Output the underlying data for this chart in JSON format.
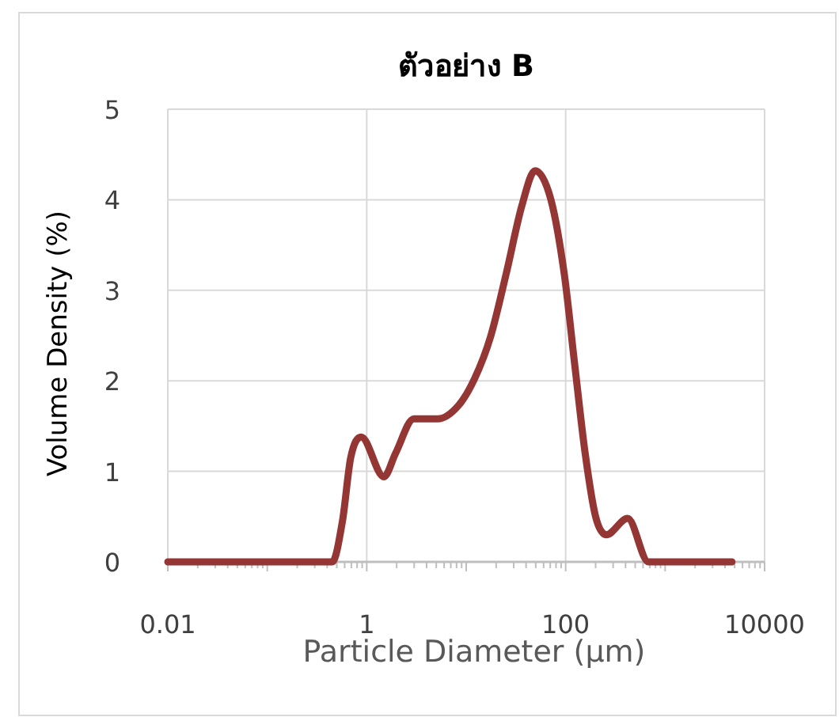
{
  "chart_data": {
    "type": "line",
    "title": "ตัวอย่าง B",
    "xlabel": "Particle Diameter (µm)",
    "ylabel": "Volume Density (%)",
    "log": "x",
    "xlim": [
      0.01,
      10000
    ],
    "xticks": [
      0.01,
      1,
      100,
      10000
    ],
    "ylim": [
      0,
      5
    ],
    "yticks": [
      0,
      1,
      2,
      3,
      4,
      5
    ],
    "grid": true,
    "marker": "none",
    "line_style": "solid",
    "series": [
      {
        "color": "#943634",
        "x": [
          0.01,
          0.45,
          0.57,
          0.69,
          0.88,
          1.49,
          1.95,
          2.98,
          5.17,
          8.4,
          12.1,
          17.5,
          25.2,
          36.4,
          49.3,
          71.1,
          96.8,
          123,
          157,
          200,
          256,
          420,
          681,
          4700
        ],
        "values": [
          0,
          0,
          0.45,
          1.15,
          1.38,
          0.94,
          1.2,
          1.58,
          1.58,
          1.73,
          2.02,
          2.48,
          3.18,
          3.94,
          4.32,
          4.0,
          3.18,
          2.19,
          1.2,
          0.5,
          0.3,
          0.48,
          0,
          0
        ]
      }
    ]
  }
}
